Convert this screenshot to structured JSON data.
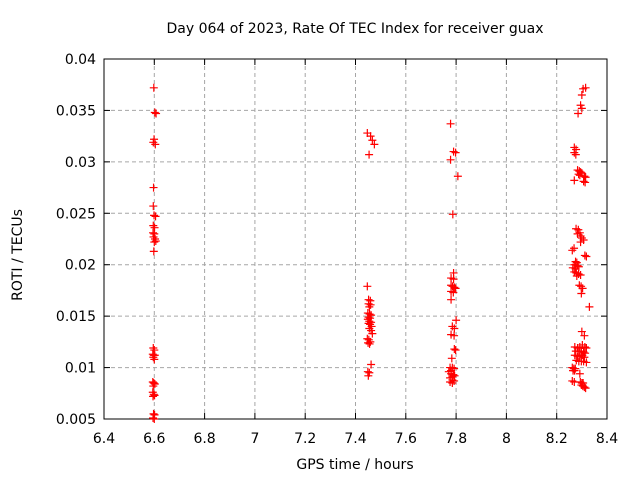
{
  "window": {
    "background": "#ffffff"
  },
  "chart_data": {
    "type": "scatter",
    "title": "Day 064 of 2023, Rate Of TEC Index for receiver guax",
    "xlabel": "GPS time / hours",
    "ylabel": "ROTI / TECUs",
    "xlim": [
      6.4,
      8.4
    ],
    "ylim": [
      0.005,
      0.04
    ],
    "x_ticks": [
      6.4,
      6.6,
      6.8,
      7.0,
      7.2,
      7.4,
      7.6,
      7.8,
      8.0,
      8.2,
      8.4
    ],
    "x_tick_labels": [
      "6.4",
      "6.6",
      "6.8",
      "7",
      "7.2",
      "7.4",
      "7.6",
      "7.8",
      "8",
      "8.2",
      "8.4"
    ],
    "y_ticks": [
      0.005,
      0.01,
      0.015,
      0.02,
      0.025,
      0.03,
      0.035,
      0.04
    ],
    "y_tick_labels": [
      "0.005",
      "0.01",
      "0.015",
      "0.02",
      "0.025",
      "0.03",
      "0.035",
      "0.04"
    ],
    "grid": true,
    "legend": "none",
    "marker": "plus",
    "marker_color": "#ff0000",
    "grid_color": "#a6a6a6",
    "axis_color": "#000000",
    "series": [
      {
        "name": "ROTI",
        "points": [
          [
            6.598,
            0.0372
          ],
          [
            6.602,
            0.0348
          ],
          [
            6.607,
            0.0347
          ],
          [
            6.599,
            0.0322
          ],
          [
            6.596,
            0.0319
          ],
          [
            6.604,
            0.0317
          ],
          [
            6.597,
            0.0275
          ],
          [
            6.596,
            0.0257
          ],
          [
            6.599,
            0.0248
          ],
          [
            6.605,
            0.0247
          ],
          [
            6.596,
            0.0238
          ],
          [
            6.601,
            0.0236
          ],
          [
            6.595,
            0.0231
          ],
          [
            6.6,
            0.023
          ],
          [
            6.597,
            0.0227
          ],
          [
            6.603,
            0.0225
          ],
          [
            6.606,
            0.0223
          ],
          [
            6.6,
            0.0222
          ],
          [
            6.598,
            0.0213
          ],
          [
            6.596,
            0.0119
          ],
          [
            6.6,
            0.0117
          ],
          [
            6.594,
            0.0113
          ],
          [
            6.598,
            0.0112
          ],
          [
            6.602,
            0.0112
          ],
          [
            6.596,
            0.011
          ],
          [
            6.6,
            0.0108
          ],
          [
            6.594,
            0.0086
          ],
          [
            6.598,
            0.0085
          ],
          [
            6.602,
            0.0084
          ],
          [
            6.596,
            0.0082
          ],
          [
            6.594,
            0.0076
          ],
          [
            6.598,
            0.0074
          ],
          [
            6.601,
            0.0073
          ],
          [
            6.595,
            0.0072
          ],
          [
            6.597,
            0.0055
          ],
          [
            6.601,
            0.0054
          ],
          [
            6.595,
            0.0051
          ],
          [
            6.6,
            0.005
          ],
          [
            7.447,
            0.0328
          ],
          [
            7.46,
            0.0325
          ],
          [
            7.467,
            0.0321
          ],
          [
            7.475,
            0.0317
          ],
          [
            7.454,
            0.0307
          ],
          [
            7.447,
            0.0179
          ],
          [
            7.452,
            0.0166
          ],
          [
            7.459,
            0.0165
          ],
          [
            7.452,
            0.0162
          ],
          [
            7.46,
            0.0161
          ],
          [
            7.455,
            0.0159
          ],
          [
            7.449,
            0.0153
          ],
          [
            7.456,
            0.0152
          ],
          [
            7.462,
            0.0151
          ],
          [
            7.452,
            0.0149
          ],
          [
            7.458,
            0.0148
          ],
          [
            7.449,
            0.0147
          ],
          [
            7.455,
            0.0145
          ],
          [
            7.462,
            0.0144
          ],
          [
            7.452,
            0.0143
          ],
          [
            7.458,
            0.0142
          ],
          [
            7.464,
            0.014
          ],
          [
            7.455,
            0.0138
          ],
          [
            7.462,
            0.0136
          ],
          [
            7.467,
            0.0133
          ],
          [
            7.447,
            0.0128
          ],
          [
            7.453,
            0.0127
          ],
          [
            7.459,
            0.0125
          ],
          [
            7.45,
            0.0124
          ],
          [
            7.456,
            0.0123
          ],
          [
            7.462,
            0.0103
          ],
          [
            7.449,
            0.0096
          ],
          [
            7.455,
            0.0095
          ],
          [
            7.451,
            0.0092
          ],
          [
            7.778,
            0.0337
          ],
          [
            7.79,
            0.031
          ],
          [
            7.798,
            0.0309
          ],
          [
            7.778,
            0.0302
          ],
          [
            7.807,
            0.0286
          ],
          [
            7.787,
            0.0249
          ],
          [
            7.79,
            0.0192
          ],
          [
            7.78,
            0.0187
          ],
          [
            7.79,
            0.0186
          ],
          [
            7.78,
            0.018
          ],
          [
            7.786,
            0.0179
          ],
          [
            7.793,
            0.0178
          ],
          [
            7.798,
            0.0177
          ],
          [
            7.78,
            0.0174
          ],
          [
            7.789,
            0.0173
          ],
          [
            7.78,
            0.0166
          ],
          [
            7.8,
            0.0146
          ],
          [
            7.785,
            0.014
          ],
          [
            7.793,
            0.0138
          ],
          [
            7.78,
            0.0132
          ],
          [
            7.792,
            0.0131
          ],
          [
            7.793,
            0.0118
          ],
          [
            7.798,
            0.0117
          ],
          [
            7.783,
            0.0109
          ],
          [
            7.776,
            0.01
          ],
          [
            7.785,
            0.01
          ],
          [
            7.792,
            0.0099
          ],
          [
            7.78,
            0.0097
          ],
          [
            7.771,
            0.0096
          ],
          [
            7.78,
            0.0094
          ],
          [
            7.789,
            0.0093
          ],
          [
            7.794,
            0.0092
          ],
          [
            7.785,
            0.0091
          ],
          [
            7.776,
            0.009
          ],
          [
            7.785,
            0.0088
          ],
          [
            7.792,
            0.0087
          ],
          [
            7.776,
            0.0086
          ],
          [
            7.785,
            0.0085
          ],
          [
            8.3,
            0.0365
          ],
          [
            8.305,
            0.0371
          ],
          [
            8.315,
            0.0372
          ],
          [
            8.295,
            0.0355
          ],
          [
            8.3,
            0.0352
          ],
          [
            8.285,
            0.0347
          ],
          [
            8.27,
            0.0314
          ],
          [
            8.277,
            0.0312
          ],
          [
            8.27,
            0.0309
          ],
          [
            8.276,
            0.0307
          ],
          [
            8.283,
            0.0292
          ],
          [
            8.29,
            0.0291
          ],
          [
            8.295,
            0.029
          ],
          [
            8.3,
            0.0289
          ],
          [
            8.287,
            0.0288
          ],
          [
            8.292,
            0.0287
          ],
          [
            8.31,
            0.0286
          ],
          [
            8.315,
            0.0285
          ],
          [
            8.27,
            0.0282
          ],
          [
            8.307,
            0.0281
          ],
          [
            8.313,
            0.028
          ],
          [
            8.277,
            0.0235
          ],
          [
            8.286,
            0.0234
          ],
          [
            8.292,
            0.0231
          ],
          [
            8.283,
            0.023
          ],
          [
            8.295,
            0.0228
          ],
          [
            8.3,
            0.0226
          ],
          [
            8.307,
            0.0224
          ],
          [
            8.295,
            0.0222
          ],
          [
            8.269,
            0.0216
          ],
          [
            8.262,
            0.0214
          ],
          [
            8.312,
            0.0209
          ],
          [
            8.318,
            0.0208
          ],
          [
            8.275,
            0.0203
          ],
          [
            8.28,
            0.0202
          ],
          [
            8.27,
            0.02
          ],
          [
            8.283,
            0.0199
          ],
          [
            8.288,
            0.0198
          ],
          [
            8.264,
            0.0197
          ],
          [
            8.275,
            0.0196
          ],
          [
            8.27,
            0.0193
          ],
          [
            8.278,
            0.0192
          ],
          [
            8.287,
            0.0191
          ],
          [
            8.295,
            0.019
          ],
          [
            8.28,
            0.0189
          ],
          [
            8.29,
            0.018
          ],
          [
            8.297,
            0.0179
          ],
          [
            8.303,
            0.0177
          ],
          [
            8.298,
            0.0172
          ],
          [
            8.33,
            0.0159
          ],
          [
            8.3,
            0.0135
          ],
          [
            8.31,
            0.0131
          ],
          [
            8.272,
            0.012
          ],
          [
            8.283,
            0.0119
          ],
          [
            8.292,
            0.012
          ],
          [
            8.302,
            0.0122
          ],
          [
            8.312,
            0.012
          ],
          [
            8.318,
            0.0119
          ],
          [
            8.276,
            0.0116
          ],
          [
            8.288,
            0.0116
          ],
          [
            8.298,
            0.0116
          ],
          [
            8.307,
            0.0115
          ],
          [
            8.313,
            0.0114
          ],
          [
            8.272,
            0.0112
          ],
          [
            8.283,
            0.0111
          ],
          [
            8.292,
            0.0111
          ],
          [
            8.302,
            0.0112
          ],
          [
            8.31,
            0.011
          ],
          [
            8.278,
            0.0107
          ],
          [
            8.288,
            0.0106
          ],
          [
            8.298,
            0.0106
          ],
          [
            8.307,
            0.0106
          ],
          [
            8.318,
            0.0105
          ],
          [
            8.262,
            0.01
          ],
          [
            8.268,
            0.0099
          ],
          [
            8.274,
            0.0099
          ],
          [
            8.265,
            0.0097
          ],
          [
            8.271,
            0.0097
          ],
          [
            8.292,
            0.0094
          ],
          [
            8.262,
            0.0087
          ],
          [
            8.27,
            0.0086
          ],
          [
            8.294,
            0.0086
          ],
          [
            8.3,
            0.0085
          ],
          [
            8.305,
            0.0085
          ],
          [
            8.298,
            0.0083
          ],
          [
            8.304,
            0.0082
          ],
          [
            8.31,
            0.0081
          ],
          [
            8.315,
            0.008
          ]
        ]
      }
    ]
  }
}
